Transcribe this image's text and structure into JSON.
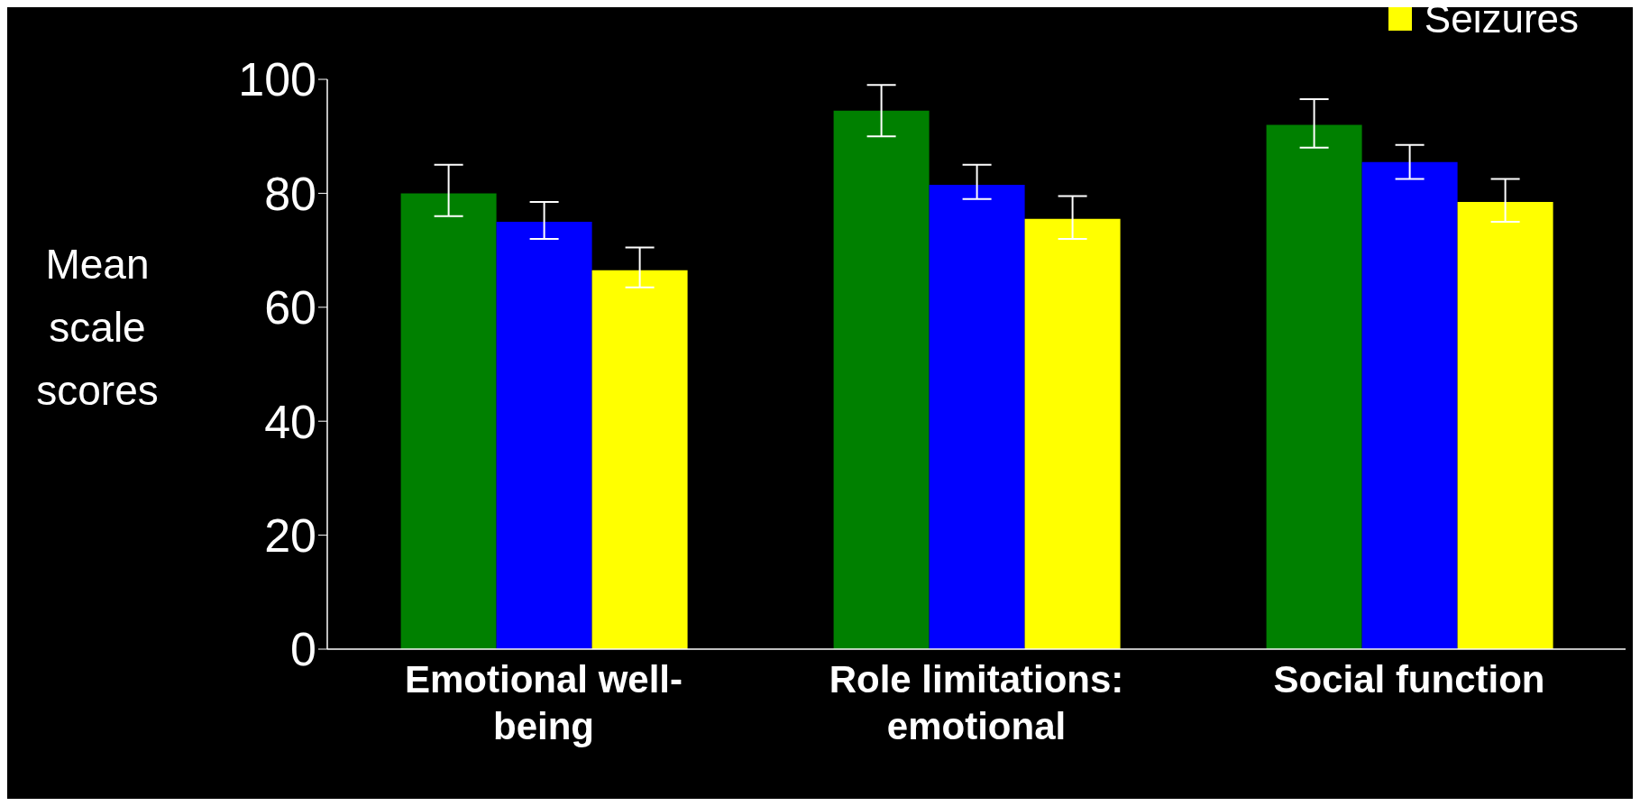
{
  "chart_data": {
    "type": "bar",
    "ylabel": "Mean scale scores",
    "categories": [
      "Emotional well-being",
      "Role limitations: emotional",
      "Social function"
    ],
    "series": [
      {
        "color": "#008000",
        "values": [
          80,
          94.5,
          92
        ],
        "errors": [
          [
            76,
            85
          ],
          [
            90,
            99
          ],
          [
            88,
            96.5
          ]
        ]
      },
      {
        "color": "#0000ff",
        "values": [
          75,
          81.5,
          85.5
        ],
        "errors": [
          [
            72,
            78.5
          ],
          [
            79,
            85
          ],
          [
            82.5,
            88.5
          ]
        ]
      },
      {
        "name": "Seizures",
        "color": "#ffff00",
        "values": [
          66.5,
          75.5,
          78.5
        ],
        "errors": [
          [
            63.5,
            70.5
          ],
          [
            72,
            79.5
          ],
          [
            75,
            82.5
          ]
        ]
      }
    ],
    "ylim": [
      0,
      100
    ],
    "yticks": [
      0,
      20,
      40,
      60,
      80,
      100
    ],
    "legend": "top right"
  }
}
